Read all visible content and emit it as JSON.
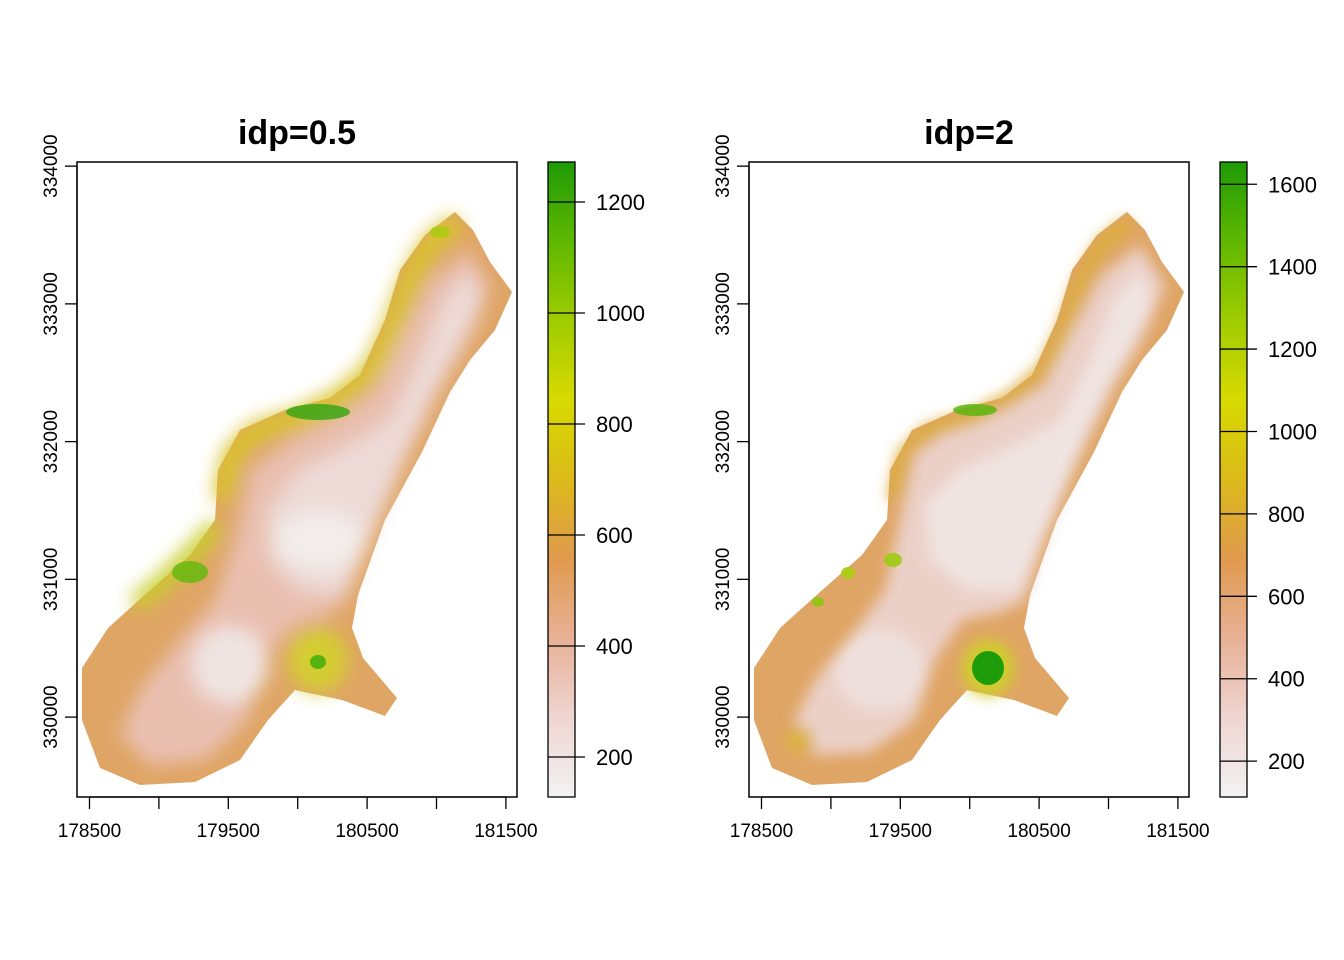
{
  "figure": {
    "background": "#ffffff"
  },
  "chart_data": [
    {
      "type": "heatmap",
      "title": "idp=0.5",
      "xlabel": "",
      "ylabel": "",
      "xlim": [
        178410,
        181580
      ],
      "ylim": [
        329420,
        334030
      ],
      "x_ticks": [
        178500,
        179000,
        179500,
        180000,
        180500,
        181000,
        181500
      ],
      "x_tick_labels": [
        "178500",
        "",
        "179500",
        "",
        "180500",
        "",
        "181500"
      ],
      "y_ticks": [
        330000,
        331000,
        332000,
        333000,
        334000
      ],
      "y_tick_labels": [
        "330000",
        "331000",
        "332000",
        "333000",
        "334000"
      ],
      "colorbar": {
        "min": 128,
        "max": 1272,
        "ticks": [
          200,
          400,
          600,
          800,
          1000,
          1200
        ],
        "tick_labels": [
          "200",
          "400",
          "600",
          "800",
          "1000",
          "1200"
        ],
        "colors": [
          "#f2f2f2",
          "#efd5d2",
          "#e8b196",
          "#e09a4e",
          "#dbba1a",
          "#d8da00",
          "#9fcc00",
          "#5fb800",
          "#1e9a06"
        ]
      },
      "grid": false,
      "legend": "right"
    },
    {
      "type": "heatmap",
      "title": "idp=2",
      "xlabel": "",
      "ylabel": "",
      "xlim": [
        178410,
        181580
      ],
      "ylim": [
        329420,
        334030
      ],
      "x_ticks": [
        178500,
        179000,
        179500,
        180000,
        180500,
        181000,
        181500
      ],
      "x_tick_labels": [
        "178500",
        "",
        "179500",
        "",
        "180500",
        "",
        "181500"
      ],
      "y_ticks": [
        330000,
        331000,
        332000,
        333000,
        334000
      ],
      "y_tick_labels": [
        "330000",
        "331000",
        "332000",
        "333000",
        "334000"
      ],
      "colorbar": {
        "min": 113,
        "max": 1654,
        "ticks": [
          200,
          400,
          600,
          800,
          1000,
          1200,
          1400,
          1600
        ],
        "tick_labels": [
          "200",
          "400",
          "600",
          "800",
          "1000",
          "1200",
          "1400",
          "1600"
        ],
        "colors": [
          "#f2f2f2",
          "#efd5d2",
          "#e8b196",
          "#e09a4e",
          "#dbba1a",
          "#d8da00",
          "#9fcc00",
          "#5fb800",
          "#1e9a06"
        ]
      },
      "grid": false,
      "legend": "right"
    }
  ]
}
